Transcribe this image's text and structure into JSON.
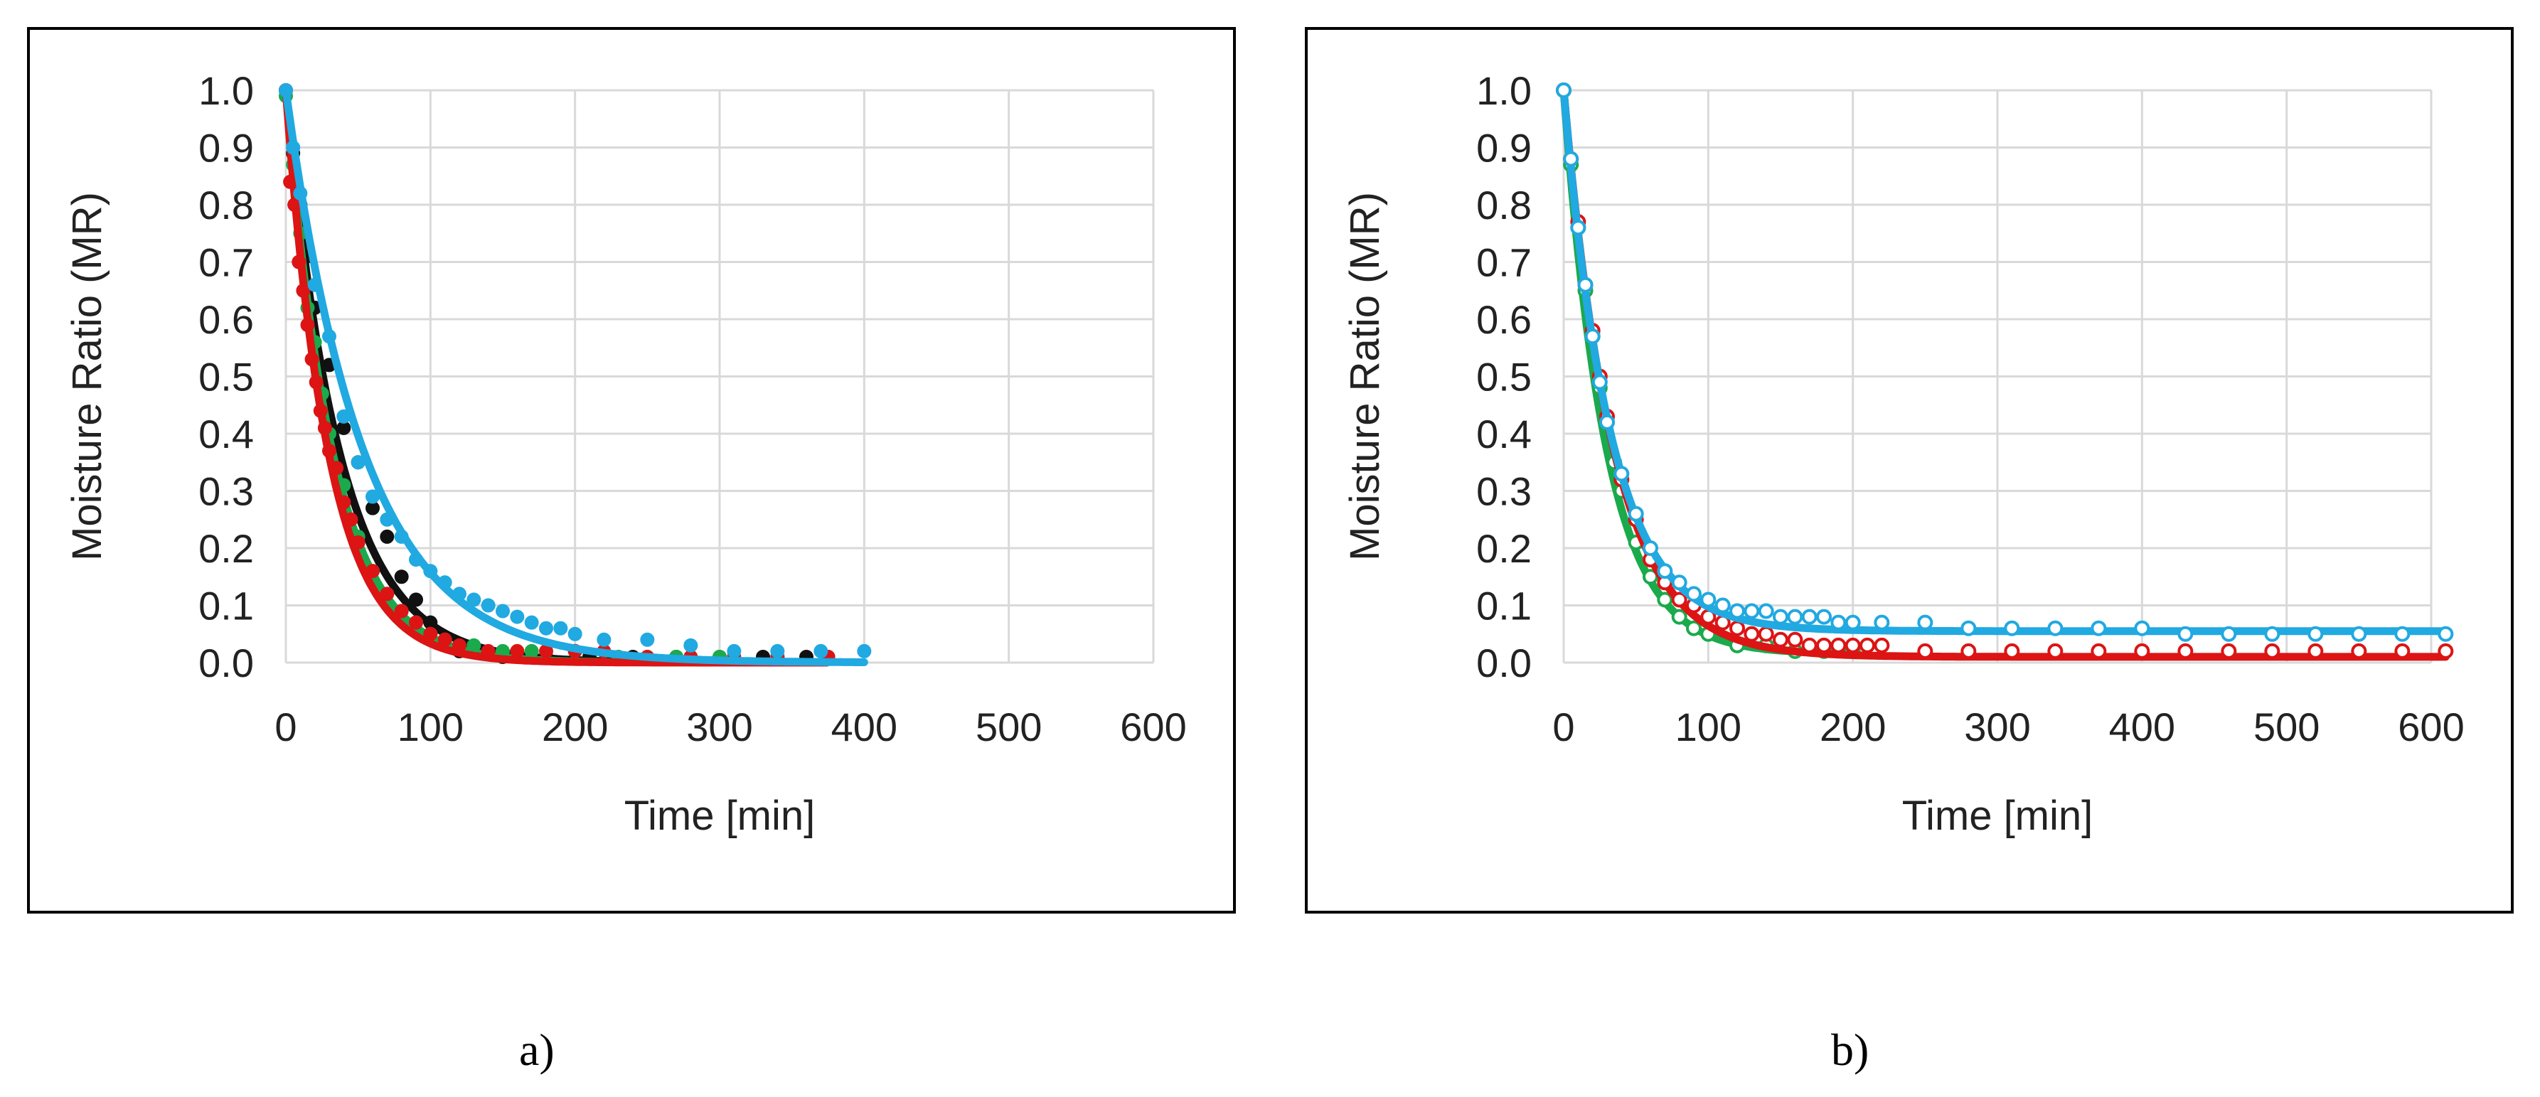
{
  "captions": {
    "a": "a)",
    "b": "b)"
  },
  "colors": {
    "black": "#111111",
    "green": "#1aaa4c",
    "red": "#dc1414",
    "blue": "#21a9e1",
    "grid": "#d9d9d9"
  },
  "chart_data": [
    {
      "type": "scatter",
      "panel": "a",
      "title": "",
      "xlabel": "Time [min]",
      "ylabel": "Moisture Ratio (MR)",
      "xlim": [
        0,
        600
      ],
      "ylim": [
        0,
        1.0
      ],
      "xticks": [
        "0",
        "100",
        "200",
        "300",
        "400",
        "500",
        "600"
      ],
      "yticks": [
        "0.0",
        "0.1",
        "0.2",
        "0.3",
        "0.4",
        "0.5",
        "0.6",
        "0.7",
        "0.8",
        "0.9",
        "1.0"
      ],
      "grid": true,
      "series": [
        {
          "name": "black",
          "color": "black",
          "marker": "filled",
          "fit_k": 0.027,
          "x": [
            0,
            5,
            10,
            15,
            20,
            30,
            40,
            50,
            60,
            70,
            80,
            90,
            100,
            110,
            120,
            150,
            180,
            210,
            240,
            270,
            300,
            330,
            360,
            375
          ],
          "y": [
            1.0,
            0.89,
            0.8,
            0.71,
            0.62,
            0.52,
            0.41,
            0.35,
            0.27,
            0.22,
            0.15,
            0.11,
            0.07,
            0.03,
            0.02,
            0.01,
            0.01,
            0.01,
            0.01,
            0.01,
            0.01,
            0.01,
            0.01,
            0.01
          ]
        },
        {
          "name": "green",
          "color": "green",
          "marker": "filled",
          "fit_k": 0.031,
          "x": [
            0,
            5,
            10,
            15,
            20,
            25,
            30,
            40,
            50,
            60,
            70,
            80,
            90,
            100,
            110,
            130,
            150,
            170,
            200,
            230,
            270,
            300,
            340,
            375
          ],
          "y": [
            0.99,
            0.87,
            0.75,
            0.62,
            0.56,
            0.47,
            0.4,
            0.31,
            0.22,
            0.16,
            0.12,
            0.09,
            0.07,
            0.05,
            0.04,
            0.03,
            0.02,
            0.02,
            0.02,
            0.01,
            0.01,
            0.01,
            0.01,
            0.01
          ]
        },
        {
          "name": "red",
          "color": "red",
          "marker": "filled",
          "fit_k": 0.034,
          "x": [
            0,
            3,
            6,
            9,
            12,
            15,
            18,
            21,
            24,
            27,
            30,
            35,
            40,
            45,
            50,
            60,
            70,
            80,
            90,
            100,
            110,
            120,
            140,
            160,
            180,
            200,
            220,
            250,
            280,
            310,
            340,
            375
          ],
          "y": [
            1.0,
            0.84,
            0.8,
            0.7,
            0.65,
            0.59,
            0.53,
            0.49,
            0.44,
            0.41,
            0.37,
            0.34,
            0.28,
            0.25,
            0.21,
            0.16,
            0.12,
            0.09,
            0.07,
            0.05,
            0.04,
            0.03,
            0.02,
            0.02,
            0.02,
            0.02,
            0.02,
            0.01,
            0.01,
            0.01,
            0.01,
            0.01
          ]
        },
        {
          "name": "blue",
          "color": "blue",
          "marker": "filled",
          "fit_k": 0.0185,
          "x": [
            0,
            5,
            10,
            20,
            30,
            40,
            50,
            60,
            70,
            80,
            90,
            100,
            110,
            120,
            130,
            140,
            150,
            160,
            170,
            180,
            190,
            200,
            220,
            250,
            280,
            310,
            340,
            370,
            400
          ],
          "y": [
            1.0,
            0.9,
            0.82,
            0.66,
            0.57,
            0.43,
            0.35,
            0.29,
            0.25,
            0.22,
            0.18,
            0.16,
            0.14,
            0.12,
            0.11,
            0.1,
            0.09,
            0.08,
            0.07,
            0.06,
            0.06,
            0.05,
            0.04,
            0.04,
            0.03,
            0.02,
            0.02,
            0.02,
            0.02
          ]
        }
      ]
    },
    {
      "type": "scatter",
      "panel": "b",
      "title": "",
      "xlabel": "Time [min]",
      "ylabel": "Moisture Ratio (MR)",
      "xlim": [
        0,
        600
      ],
      "ylim": [
        0,
        1.0
      ],
      "xticks": [
        "0",
        "100",
        "200",
        "300",
        "400",
        "500",
        "600"
      ],
      "yticks": [
        "0.0",
        "0.1",
        "0.2",
        "0.3",
        "0.4",
        "0.5",
        "0.6",
        "0.7",
        "0.8",
        "0.9",
        "1.0"
      ],
      "grid": true,
      "series": [
        {
          "name": "green",
          "color": "green",
          "marker": "open",
          "fit_k": 0.034,
          "fit_c": 0.015,
          "x": [
            0,
            5,
            10,
            15,
            20,
            25,
            30,
            35,
            40,
            50,
            60,
            70,
            80,
            90,
            100,
            120,
            140,
            160,
            180,
            200
          ],
          "y": [
            1.0,
            0.87,
            0.76,
            0.65,
            0.57,
            0.48,
            0.42,
            0.35,
            0.3,
            0.21,
            0.15,
            0.11,
            0.08,
            0.06,
            0.05,
            0.03,
            0.03,
            0.02,
            0.02,
            0.02
          ]
        },
        {
          "name": "red",
          "color": "red",
          "marker": "open",
          "fit_k": 0.029,
          "fit_c": 0.01,
          "x": [
            0,
            5,
            10,
            15,
            20,
            25,
            30,
            40,
            50,
            60,
            70,
            80,
            90,
            100,
            110,
            120,
            130,
            140,
            150,
            160,
            170,
            180,
            190,
            200,
            210,
            220,
            250,
            280,
            310,
            340,
            370,
            400,
            430,
            460,
            490,
            520,
            550,
            580,
            610
          ],
          "y": [
            1.0,
            0.88,
            0.77,
            0.66,
            0.58,
            0.5,
            0.43,
            0.32,
            0.25,
            0.18,
            0.14,
            0.11,
            0.1,
            0.08,
            0.07,
            0.06,
            0.05,
            0.05,
            0.04,
            0.04,
            0.03,
            0.03,
            0.03,
            0.03,
            0.03,
            0.03,
            0.02,
            0.02,
            0.02,
            0.02,
            0.02,
            0.02,
            0.02,
            0.02,
            0.02,
            0.02,
            0.02,
            0.02,
            0.02
          ]
        },
        {
          "name": "blue",
          "color": "blue",
          "marker": "open",
          "fit_k": 0.031,
          "fit_c": 0.055,
          "x": [
            0,
            5,
            10,
            15,
            20,
            25,
            30,
            40,
            50,
            60,
            70,
            80,
            90,
            100,
            110,
            120,
            130,
            140,
            150,
            160,
            170,
            180,
            190,
            200,
            220,
            250,
            280,
            310,
            340,
            370,
            400,
            430,
            460,
            490,
            520,
            550,
            580,
            610
          ],
          "y": [
            1.0,
            0.88,
            0.76,
            0.66,
            0.57,
            0.49,
            0.42,
            0.33,
            0.26,
            0.2,
            0.16,
            0.14,
            0.12,
            0.11,
            0.1,
            0.09,
            0.09,
            0.09,
            0.08,
            0.08,
            0.08,
            0.08,
            0.07,
            0.07,
            0.07,
            0.07,
            0.06,
            0.06,
            0.06,
            0.06,
            0.06,
            0.05,
            0.05,
            0.05,
            0.05,
            0.05,
            0.05,
            0.05
          ]
        }
      ]
    }
  ]
}
